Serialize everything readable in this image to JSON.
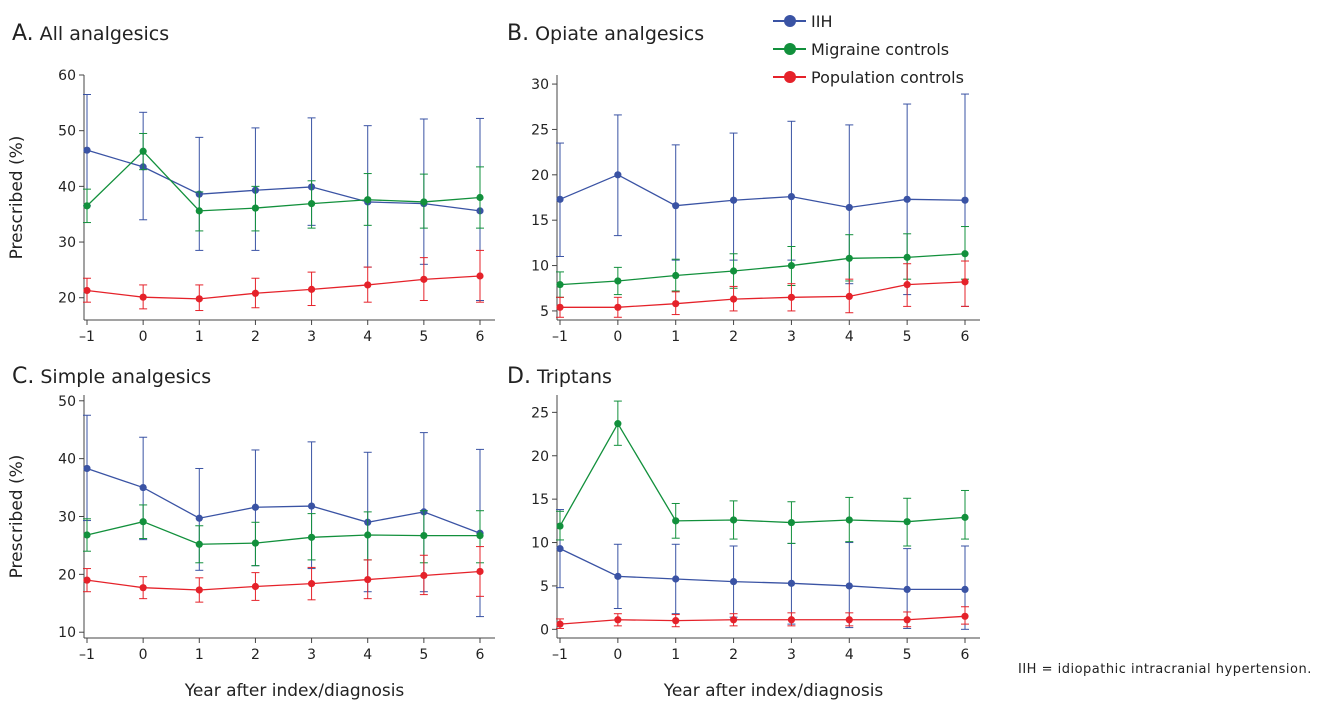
{
  "legend": [
    {
      "name": "IIH",
      "color": "#3a53a4"
    },
    {
      "name": "Migraine controls",
      "color": "#12903c"
    },
    {
      "name": "Population controls",
      "color": "#e5222a"
    }
  ],
  "footnote": "IIH = idiopathic intracranial hypertension.",
  "chart_data": [
    {
      "type": "line",
      "letter": "A.",
      "title": "All analgesics",
      "xlabel": "",
      "ylabel": "Prescribed (%)",
      "x": [
        -1,
        0,
        1,
        2,
        3,
        4,
        5,
        6
      ],
      "x_tick_labels": [
        "–1",
        "0",
        "1",
        "2",
        "3",
        "4",
        "5",
        "6"
      ],
      "ylim": [
        16,
        60
      ],
      "yticks": [
        20,
        30,
        40,
        50,
        60
      ],
      "series": [
        {
          "name": "IIH",
          "color": "#3a53a4",
          "values": [
            46.5,
            43.5,
            38.6,
            39.3,
            39.9,
            37.2,
            36.9,
            35.6
          ],
          "lower": [
            36.5,
            34.0,
            28.5,
            28.5,
            33.0,
            25.5,
            26.0,
            19.5
          ],
          "upper": [
            56.5,
            53.3,
            48.8,
            50.5,
            52.3,
            50.9,
            52.1,
            52.2
          ]
        },
        {
          "name": "Migraine controls",
          "color": "#12903c",
          "values": [
            36.5,
            46.3,
            35.6,
            36.1,
            36.9,
            37.6,
            37.2,
            38.0
          ],
          "lower": [
            33.5,
            43.0,
            32.0,
            32.0,
            32.5,
            33.0,
            32.5,
            32.5
          ],
          "upper": [
            39.5,
            49.5,
            39.0,
            40.0,
            41.0,
            42.3,
            42.2,
            43.5
          ]
        },
        {
          "name": "Population controls",
          "color": "#e5222a",
          "values": [
            21.3,
            20.1,
            19.8,
            20.8,
            21.5,
            22.3,
            23.3,
            23.9
          ],
          "lower": [
            19.2,
            18.0,
            17.7,
            18.2,
            18.6,
            19.2,
            19.5,
            19.2
          ],
          "upper": [
            23.5,
            22.3,
            22.3,
            23.5,
            24.6,
            25.5,
            27.2,
            28.5
          ]
        }
      ]
    },
    {
      "type": "line",
      "letter": "B.",
      "title": "Opiate analgesics",
      "xlabel": "",
      "ylabel": "",
      "x": [
        -1,
        0,
        1,
        2,
        3,
        4,
        5,
        6
      ],
      "x_tick_labels": [
        "–1",
        "0",
        "1",
        "2",
        "3",
        "4",
        "5",
        "6"
      ],
      "ylim": [
        4,
        31
      ],
      "yticks": [
        5,
        10,
        15,
        20,
        25,
        30
      ],
      "series": [
        {
          "name": "IIH",
          "color": "#3a53a4",
          "values": [
            17.3,
            20.0,
            16.6,
            17.2,
            17.6,
            16.4,
            17.3,
            17.2
          ],
          "lower": [
            11.0,
            13.3,
            10.6,
            10.6,
            10.6,
            8.0,
            6.8,
            5.5
          ],
          "upper": [
            23.5,
            26.6,
            23.3,
            24.6,
            25.9,
            25.5,
            27.8,
            28.9
          ]
        },
        {
          "name": "Migraine controls",
          "color": "#12903c",
          "values": [
            7.9,
            8.3,
            8.9,
            9.4,
            10.0,
            10.8,
            10.9,
            11.3
          ],
          "lower": [
            6.5,
            6.8,
            7.2,
            7.5,
            7.8,
            8.3,
            8.5,
            8.5
          ],
          "upper": [
            9.3,
            9.8,
            10.7,
            11.3,
            12.1,
            13.4,
            13.5,
            14.3
          ]
        },
        {
          "name": "Population controls",
          "color": "#e5222a",
          "values": [
            5.4,
            5.4,
            5.8,
            6.3,
            6.5,
            6.6,
            7.9,
            8.2
          ],
          "lower": [
            4.3,
            4.3,
            4.6,
            5.0,
            5.0,
            4.8,
            5.5,
            5.5
          ],
          "upper": [
            6.5,
            6.5,
            7.1,
            7.7,
            8.0,
            8.5,
            10.2,
            10.5
          ]
        }
      ]
    },
    {
      "type": "line",
      "letter": "C.",
      "title": "Simple analgesics",
      "xlabel": "Year after index/diagnosis",
      "ylabel": "Prescribed (%)",
      "x": [
        -1,
        0,
        1,
        2,
        3,
        4,
        5,
        6
      ],
      "x_tick_labels": [
        "–1",
        "0",
        "1",
        "2",
        "3",
        "4",
        "5",
        "6"
      ],
      "ylim": [
        9,
        51
      ],
      "yticks": [
        10,
        20,
        30,
        40,
        50
      ],
      "series": [
        {
          "name": "IIH",
          "color": "#3a53a4",
          "values": [
            38.3,
            35.0,
            29.7,
            31.6,
            31.8,
            29.0,
            30.8,
            27.1
          ],
          "lower": [
            29.3,
            26.0,
            20.7,
            21.5,
            21.0,
            17.0,
            17.0,
            12.7
          ],
          "upper": [
            47.5,
            43.7,
            38.3,
            41.5,
            42.9,
            41.1,
            44.5,
            41.6
          ]
        },
        {
          "name": "Migraine controls",
          "color": "#12903c",
          "values": [
            26.8,
            29.1,
            25.2,
            25.4,
            26.4,
            26.8,
            26.7,
            26.7
          ],
          "lower": [
            24.0,
            26.2,
            22.0,
            21.5,
            22.5,
            22.5,
            22.0,
            22.0
          ],
          "upper": [
            29.6,
            32.0,
            28.4,
            29.0,
            30.5,
            30.8,
            31.0,
            31.0
          ]
        },
        {
          "name": "Population controls",
          "color": "#e5222a",
          "values": [
            19.0,
            17.7,
            17.3,
            17.9,
            18.4,
            19.1,
            19.8,
            20.5
          ],
          "lower": [
            17.0,
            15.8,
            15.2,
            15.5,
            15.6,
            15.8,
            16.5,
            16.2
          ],
          "upper": [
            21.0,
            19.6,
            19.4,
            20.3,
            21.2,
            22.5,
            23.3,
            24.8
          ]
        }
      ]
    },
    {
      "type": "line",
      "letter": "D.",
      "title": "Triptans",
      "xlabel": "Year after index/diagnosis",
      "ylabel": "",
      "x": [
        -1,
        0,
        1,
        2,
        3,
        4,
        5,
        6
      ],
      "x_tick_labels": [
        "–1",
        "0",
        "1",
        "2",
        "3",
        "4",
        "5",
        "6"
      ],
      "ylim": [
        -1,
        27
      ],
      "yticks": [
        0,
        5,
        10,
        15,
        20,
        25
      ],
      "series": [
        {
          "name": "IIH",
          "color": "#3a53a4",
          "values": [
            9.3,
            6.1,
            5.8,
            5.5,
            5.3,
            5.0,
            4.6,
            4.6
          ],
          "lower": [
            4.8,
            2.4,
            1.8,
            1.4,
            0.6,
            0.2,
            0.1,
            0.0
          ],
          "upper": [
            13.8,
            9.8,
            9.8,
            9.6,
            9.9,
            10.0,
            9.3,
            9.6
          ]
        },
        {
          "name": "Migraine controls",
          "color": "#12903c",
          "values": [
            11.9,
            23.7,
            12.5,
            12.6,
            12.3,
            12.6,
            12.4,
            12.9
          ],
          "lower": [
            10.3,
            21.2,
            10.5,
            10.4,
            9.9,
            10.1,
            9.6,
            10.4
          ],
          "upper": [
            13.6,
            26.3,
            14.5,
            14.8,
            14.7,
            15.2,
            15.1,
            16.0
          ]
        },
        {
          "name": "Population controls",
          "color": "#e5222a",
          "values": [
            0.6,
            1.1,
            1.0,
            1.1,
            1.1,
            1.1,
            1.1,
            1.5
          ],
          "lower": [
            0.1,
            0.4,
            0.3,
            0.4,
            0.4,
            0.4,
            0.3,
            0.6
          ],
          "upper": [
            1.2,
            1.8,
            1.7,
            1.8,
            1.9,
            1.9,
            2.0,
            2.6
          ]
        }
      ]
    }
  ]
}
